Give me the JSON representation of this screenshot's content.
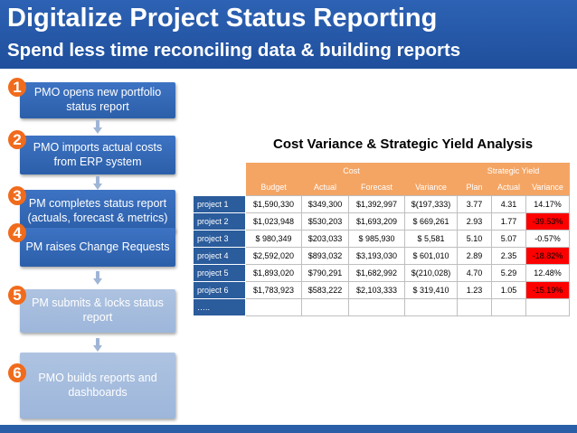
{
  "title": "Digitalize Project Status Reporting",
  "subtitle": "Spend less time reconciling data & building reports",
  "colors": {
    "header": "#2d62b4",
    "step_active": "#3d73c3",
    "step_future": "#aec3e1",
    "badge": "#f06b1c",
    "table_header": "#f4a564",
    "row_header": "#2b5c9c",
    "negative": "#ff0000"
  },
  "steps": [
    {
      "number": "1",
      "text": "PMO opens new portfolio status report"
    },
    {
      "number": "2",
      "text": "PMO imports  actual costs from ERP system"
    },
    {
      "number": "3",
      "text": "PM completes  status report (actuals, forecast & metrics)"
    },
    {
      "number": "4",
      "text": "PM raises  Change Requests"
    },
    {
      "number": "5",
      "text": "PM submits &  locks status report"
    },
    {
      "number": "6",
      "text": "PMO builds reports and dashboards"
    }
  ],
  "table": {
    "title": "Cost Variance & Strategic Yield Analysis",
    "groups": {
      "cost": "Cost",
      "yield": "Strategic Yield"
    },
    "columns": [
      "Budget",
      "Actual",
      "Forecast",
      "Variance",
      "Plan",
      "Actual",
      "Variance"
    ],
    "rows": [
      {
        "name": "project 1",
        "cells": [
          "$1,590,330",
          "$349,300",
          "$1,392,997",
          "$(197,333)",
          "3.77",
          "4.31",
          "14.17%"
        ]
      },
      {
        "name": "project 2",
        "cells": [
          "$1,023,948",
          "$530,203",
          "$1,693,209",
          "$  669,261",
          "2.93",
          "1.77",
          "-39.53%"
        ]
      },
      {
        "name": "project 3",
        "cells": [
          "$    980,349",
          "$203,033",
          "$    985,930",
          "$        5,581",
          "5.10",
          "5.07",
          "-0.57%"
        ]
      },
      {
        "name": "project 4",
        "cells": [
          "$2,592,020",
          "$893,032",
          "$3,193,030",
          "$  601,010",
          "2.89",
          "2.35",
          "-18.82%"
        ]
      },
      {
        "name": "project 5",
        "cells": [
          "$1,893,020",
          "$790,291",
          "$1,682,992",
          "$(210,028)",
          "4.70",
          "5.29",
          "12.48%"
        ]
      },
      {
        "name": "project 6",
        "cells": [
          "$1,783,923",
          "$583,222",
          "$2,103,333",
          "$  319,410",
          "1.23",
          "1.05",
          "-15.19%"
        ]
      }
    ],
    "ellipsis": "….."
  }
}
